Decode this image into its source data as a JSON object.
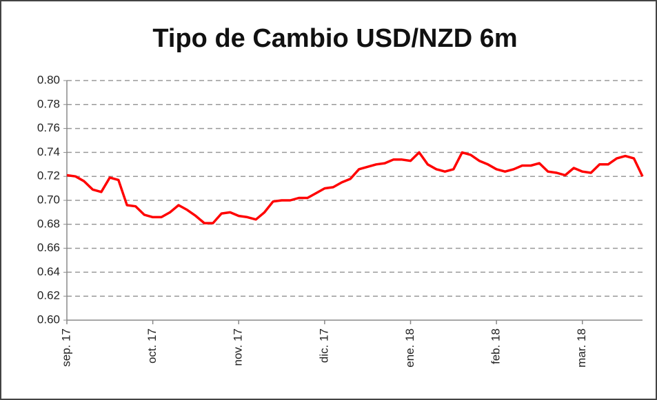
{
  "chart_data": {
    "type": "line",
    "title": "Tipo de Cambio USD/NZD 6m",
    "categories": [
      "sep. 17",
      null,
      null,
      null,
      null,
      null,
      null,
      null,
      null,
      null,
      "oct. 17",
      null,
      null,
      null,
      null,
      null,
      null,
      null,
      null,
      null,
      "nov. 17",
      null,
      null,
      null,
      null,
      null,
      null,
      null,
      null,
      null,
      "dic. 17",
      null,
      null,
      null,
      null,
      null,
      null,
      null,
      null,
      null,
      "ene. 18",
      null,
      null,
      null,
      null,
      null,
      null,
      null,
      null,
      null,
      "feb. 18",
      null,
      null,
      null,
      null,
      null,
      null,
      null,
      null,
      null,
      "mar. 18",
      null,
      null,
      null,
      null,
      null,
      null,
      null
    ],
    "values": [
      0.721,
      0.72,
      0.716,
      0.709,
      0.707,
      0.719,
      0.717,
      0.696,
      0.695,
      0.688,
      0.686,
      0.686,
      0.69,
      0.696,
      0.692,
      0.687,
      0.681,
      0.681,
      0.689,
      0.69,
      0.687,
      0.686,
      0.684,
      0.69,
      0.699,
      0.7,
      0.7,
      0.702,
      0.702,
      0.706,
      0.71,
      0.711,
      0.715,
      0.718,
      0.726,
      0.728,
      0.73,
      0.731,
      0.734,
      0.734,
      0.733,
      0.74,
      0.73,
      0.726,
      0.724,
      0.726,
      0.74,
      0.738,
      0.733,
      0.73,
      0.726,
      0.724,
      0.726,
      0.729,
      0.729,
      0.731,
      0.724,
      0.723,
      0.721,
      0.727,
      0.724,
      0.723,
      0.73,
      0.73,
      0.735,
      0.737,
      0.735,
      0.72
    ],
    "color": "#ff0000",
    "ylim": [
      0.6,
      0.8
    ],
    "yticks": [
      {
        "value": 0.6,
        "label": "0.60"
      },
      {
        "value": 0.62,
        "label": "0.62"
      },
      {
        "value": 0.64,
        "label": "0.64"
      },
      {
        "value": 0.66,
        "label": "0.66"
      },
      {
        "value": 0.68,
        "label": "0.68"
      },
      {
        "value": 0.7,
        "label": "0.70"
      },
      {
        "value": 0.72,
        "label": "0.72"
      },
      {
        "value": 0.74,
        "label": "0.74"
      },
      {
        "value": 0.76,
        "label": "0.76"
      },
      {
        "value": 0.78,
        "label": "0.78"
      },
      {
        "value": 0.8,
        "label": "0.80"
      }
    ],
    "grid": true
  }
}
